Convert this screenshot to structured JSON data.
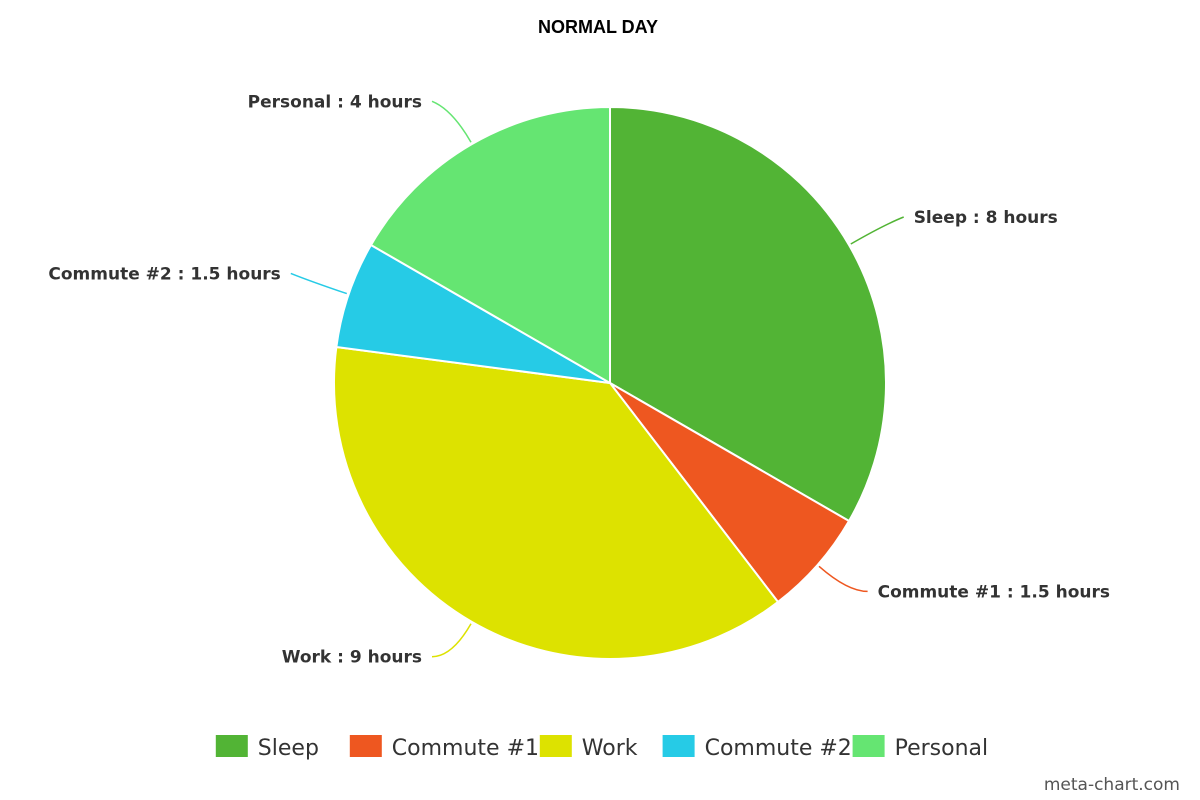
{
  "chart_data": {
    "type": "pie",
    "title": "NORMAL DAY",
    "unit": "hours",
    "slices": [
      {
        "name": "Sleep",
        "value": 8,
        "label": "Sleep : 8 hours",
        "color": "#52b435"
      },
      {
        "name": "Commute #1",
        "value": 1.5,
        "label": "Commute #1 : 1.5 hours",
        "color": "#ee5720"
      },
      {
        "name": "Work",
        "value": 9,
        "label": "Work : 9 hours",
        "color": "#dde200"
      },
      {
        "name": "Commute #2",
        "value": 1.5,
        "label": "Commute #2 : 1.5 hours",
        "color": "#26cbe6"
      },
      {
        "name": "Personal",
        "value": 4,
        "label": "Personal : 4 hours",
        "color": "#65e572"
      }
    ],
    "legend": {
      "position": "bottom",
      "entries": [
        "Sleep",
        "Commute #1",
        "Work",
        "Commute #2",
        "Personal"
      ]
    },
    "credit": "meta-chart.com"
  }
}
